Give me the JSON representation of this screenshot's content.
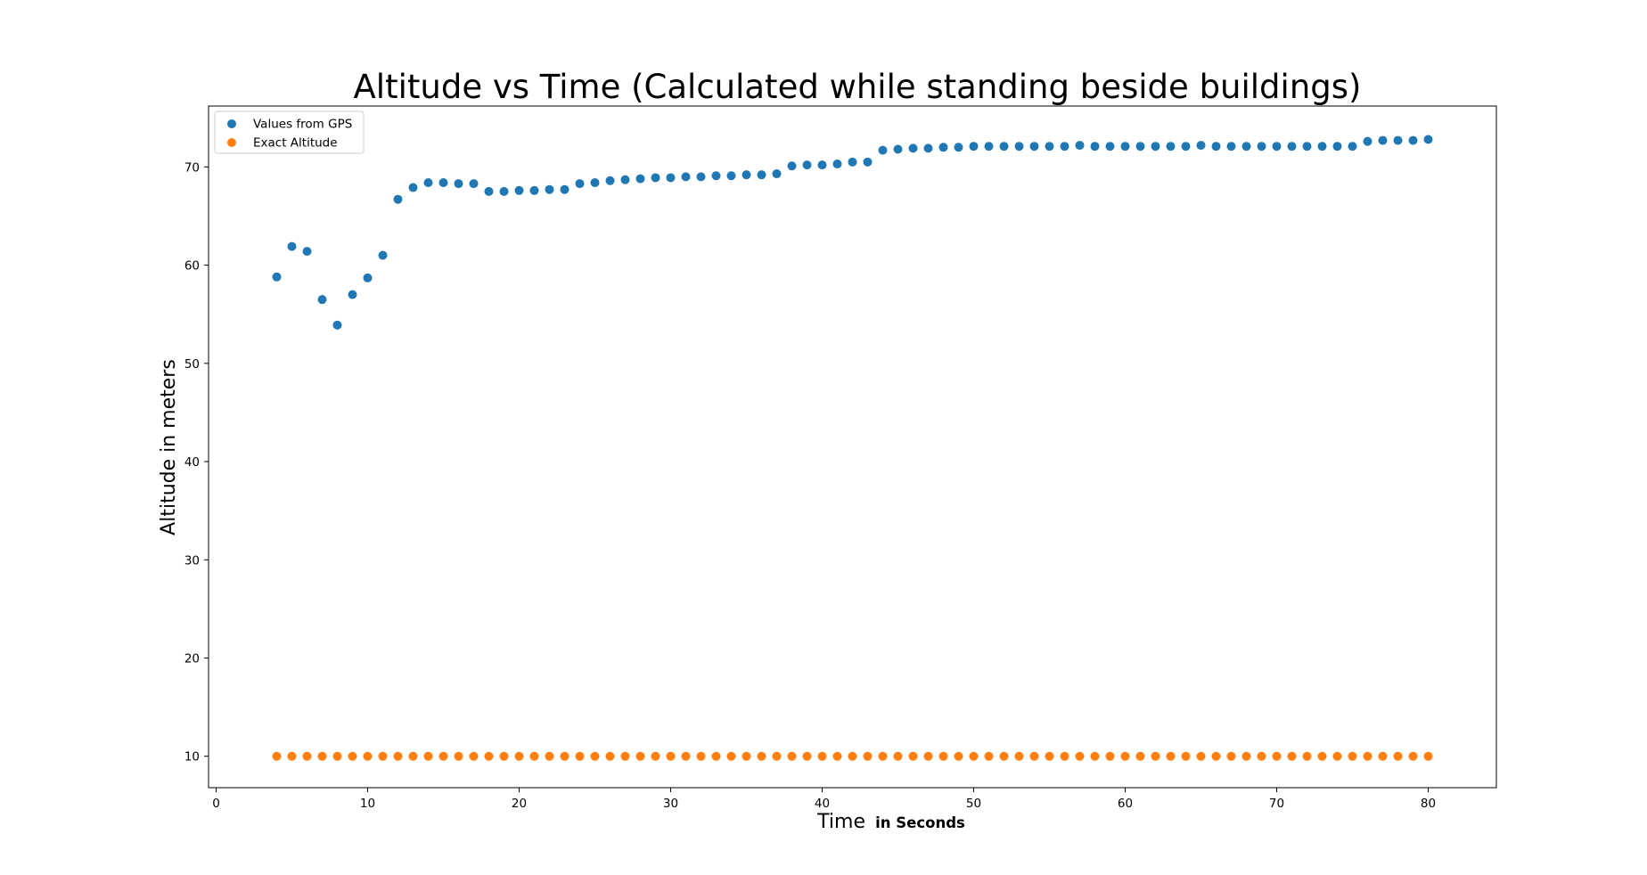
{
  "chart_data": {
    "type": "scatter",
    "title": "Altitude vs Time (Calculated while standing beside buildings)",
    "xlabel": "Time",
    "xlabel_suffix": "in Seconds",
    "ylabel": "Altitude in meters",
    "xlim": [
      -0.5,
      84.5
    ],
    "ylim": [
      6.8,
      76.2
    ],
    "xticks": [
      0,
      10,
      20,
      30,
      40,
      50,
      60,
      70,
      80
    ],
    "yticks": [
      10,
      20,
      30,
      40,
      50,
      60,
      70
    ],
    "grid": false,
    "legend_position": "top-left",
    "series": [
      {
        "name": "Values from GPS",
        "color": "#1f77b4",
        "x": [
          4,
          5,
          6,
          7,
          8,
          9,
          10,
          11,
          12,
          13,
          14,
          15,
          16,
          17,
          18,
          19,
          20,
          21,
          22,
          23,
          24,
          25,
          26,
          27,
          28,
          29,
          30,
          31,
          32,
          33,
          34,
          35,
          36,
          37,
          38,
          39,
          40,
          41,
          42,
          43,
          44,
          45,
          46,
          47,
          48,
          49,
          50,
          51,
          52,
          53,
          54,
          55,
          56,
          57,
          58,
          59,
          60,
          61,
          62,
          63,
          64,
          65,
          66,
          67,
          68,
          69,
          70,
          71,
          72,
          73,
          74,
          75,
          76,
          77,
          78,
          79,
          80
        ],
        "y": [
          58.8,
          61.9,
          61.4,
          56.5,
          53.9,
          57.0,
          58.7,
          61.0,
          66.7,
          67.9,
          68.4,
          68.4,
          68.3,
          68.3,
          67.5,
          67.5,
          67.6,
          67.6,
          67.7,
          67.7,
          68.3,
          68.4,
          68.6,
          68.7,
          68.8,
          68.9,
          68.9,
          69.0,
          69.0,
          69.1,
          69.1,
          69.2,
          69.2,
          69.3,
          70.1,
          70.2,
          70.2,
          70.3,
          70.5,
          70.5,
          71.7,
          71.8,
          71.9,
          71.9,
          72.0,
          72.0,
          72.1,
          72.1,
          72.1,
          72.1,
          72.1,
          72.1,
          72.1,
          72.2,
          72.1,
          72.1,
          72.1,
          72.1,
          72.1,
          72.1,
          72.1,
          72.2,
          72.1,
          72.1,
          72.1,
          72.1,
          72.1,
          72.1,
          72.1,
          72.1,
          72.1,
          72.1,
          72.6,
          72.7,
          72.7,
          72.7,
          72.8
        ]
      },
      {
        "name": "Exact Altitude",
        "color": "#ff7f0e",
        "x": [
          4,
          5,
          6,
          7,
          8,
          9,
          10,
          11,
          12,
          13,
          14,
          15,
          16,
          17,
          18,
          19,
          20,
          21,
          22,
          23,
          24,
          25,
          26,
          27,
          28,
          29,
          30,
          31,
          32,
          33,
          34,
          35,
          36,
          37,
          38,
          39,
          40,
          41,
          42,
          43,
          44,
          45,
          46,
          47,
          48,
          49,
          50,
          51,
          52,
          53,
          54,
          55,
          56,
          57,
          58,
          59,
          60,
          61,
          62,
          63,
          64,
          65,
          66,
          67,
          68,
          69,
          70,
          71,
          72,
          73,
          74,
          75,
          76,
          77,
          78,
          79,
          80
        ],
        "y": [
          10,
          10,
          10,
          10,
          10,
          10,
          10,
          10,
          10,
          10,
          10,
          10,
          10,
          10,
          10,
          10,
          10,
          10,
          10,
          10,
          10,
          10,
          10,
          10,
          10,
          10,
          10,
          10,
          10,
          10,
          10,
          10,
          10,
          10,
          10,
          10,
          10,
          10,
          10,
          10,
          10,
          10,
          10,
          10,
          10,
          10,
          10,
          10,
          10,
          10,
          10,
          10,
          10,
          10,
          10,
          10,
          10,
          10,
          10,
          10,
          10,
          10,
          10,
          10,
          10,
          10,
          10,
          10,
          10,
          10,
          10,
          10,
          10,
          10,
          10,
          10,
          10
        ]
      }
    ]
  }
}
